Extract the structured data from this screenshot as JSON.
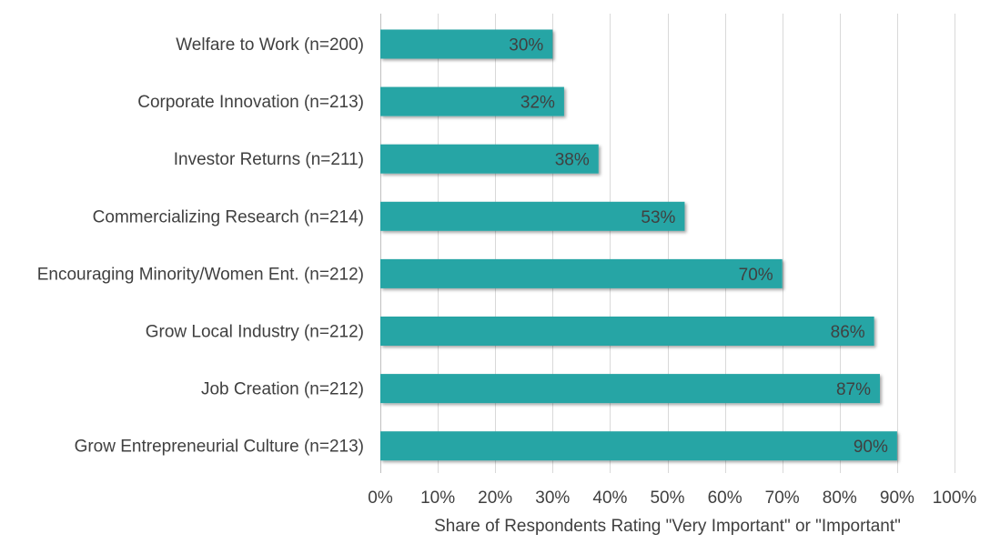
{
  "chart_data": {
    "type": "bar",
    "orientation": "horizontal",
    "categories": [
      "Welfare to Work (n=200)",
      "Corporate Innovation (n=213)",
      "Investor Returns (n=211)",
      "Commercializing Research (n=214)",
      "Encouraging Minority/Women Ent. (n=212)",
      "Grow Local Industry (n=212)",
      "Job Creation (n=212)",
      "Grow Entrepreneurial Culture (n=213)"
    ],
    "values": [
      30,
      32,
      38,
      53,
      70,
      86,
      87,
      90
    ],
    "data_labels": [
      "30%",
      "32%",
      "38%",
      "53%",
      "70%",
      "86%",
      "87%",
      "90%"
    ],
    "xlim": [
      0,
      100
    ],
    "x_ticks": [
      0,
      10,
      20,
      30,
      40,
      50,
      60,
      70,
      80,
      90,
      100
    ],
    "x_tick_labels": [
      "0%",
      "10%",
      "20%",
      "30%",
      "40%",
      "50%",
      "60%",
      "70%",
      "80%",
      "90%",
      "100%"
    ],
    "xlabel": "Share of Respondents Rating \"Very Important\" or \"Important\"",
    "ylabel": "",
    "title": "",
    "grid": true,
    "legend": "none",
    "bar_color": "#26a5a5",
    "grid_color": "#d9d9d9",
    "text_color": "#404040"
  }
}
